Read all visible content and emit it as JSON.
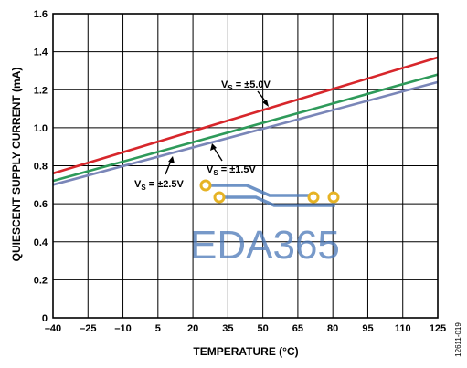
{
  "chart_data": {
    "type": "line",
    "title": "",
    "xlabel": "TEMPERATURE (°C)",
    "ylabel": "QUIESCENT SUPPLY CURRENT (mA)",
    "xlim": [
      -40,
      125
    ],
    "ylim": [
      0,
      1.6
    ],
    "x_ticks": [
      "–40",
      "–25",
      "–10",
      "5",
      "20",
      "35",
      "50",
      "65",
      "80",
      "95",
      "110",
      "125"
    ],
    "y_ticks": [
      "0",
      "0.2",
      "0.4",
      "0.6",
      "0.8",
      "1.0",
      "1.2",
      "1.4",
      "1.6"
    ],
    "grid": true,
    "series": [
      {
        "name": "VS = ±5.0V",
        "label_main": "V",
        "label_sub": "S",
        "label_rest": " = ±5.0V",
        "color": "#d7262b",
        "x": [
          -40,
          125
        ],
        "y": [
          0.76,
          1.37
        ]
      },
      {
        "name": "VS = ±2.5V",
        "label_main": "V",
        "label_sub": "S",
        "label_rest": " = ±2.5V",
        "color": "#2e9a5a",
        "x": [
          -40,
          125
        ],
        "y": [
          0.72,
          1.28
        ]
      },
      {
        "name": "VS = ±1.5V",
        "label_main": "V",
        "label_sub": "S",
        "label_rest": " = ±1.5V",
        "color": "#7a86b8",
        "x": [
          -40,
          125
        ],
        "y": [
          0.7,
          1.24
        ]
      }
    ],
    "figure_id": "12611-019"
  },
  "watermark": {
    "text": "EDA365",
    "trace_color": "#4a78b8",
    "pad_color": "#e6b325"
  }
}
